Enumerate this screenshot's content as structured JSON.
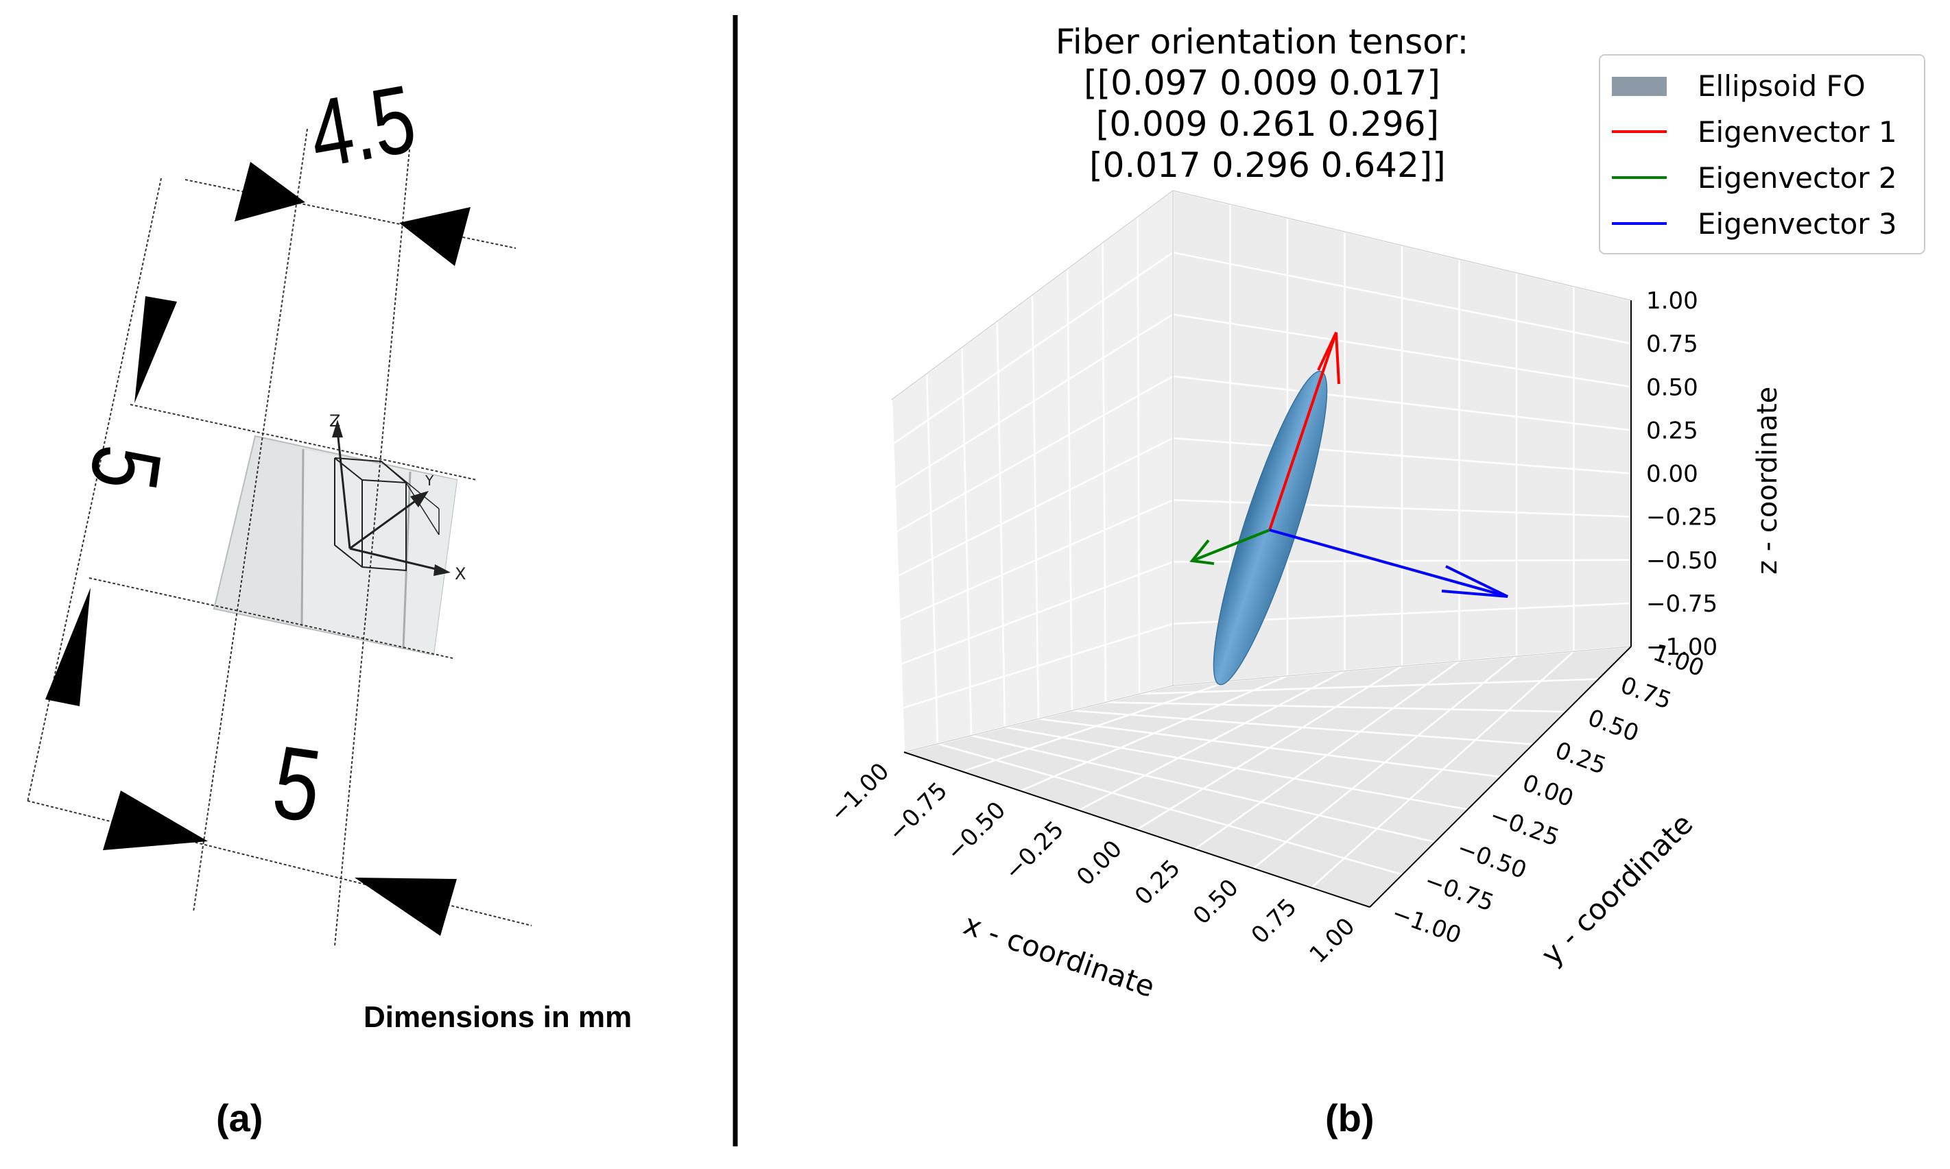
{
  "panel_a": {
    "dimensions": {
      "top_width": "4.5",
      "left_height": "5",
      "bottom_width": "5"
    },
    "note": "Dimensions in mm",
    "caption": "(a)",
    "axis_labels": {
      "x": "X",
      "y": "Y",
      "z": "Z"
    }
  },
  "panel_b": {
    "caption": "(b)",
    "title_lines": [
      "Fiber orientation tensor:",
      "[[0.097 0.009 0.017]",
      " [0.009 0.261 0.296]",
      " [0.017 0.296 0.642]]"
    ],
    "legend": [
      {
        "label": "Ellipsoid FO",
        "color": "#8c9aa8",
        "kind": "patch"
      },
      {
        "label": "Eigenvector 1",
        "color": "#ff0000",
        "kind": "line"
      },
      {
        "label": "Eigenvector 2",
        "color": "#008000",
        "kind": "line"
      },
      {
        "label": "Eigenvector 3",
        "color": "#0000ff",
        "kind": "line"
      }
    ],
    "axis_labels": {
      "x": "x - coordinate",
      "y": "y - coordinate",
      "z": "z - coordinate"
    },
    "ticks": [
      "−1.00",
      "−0.75",
      "−0.50",
      "−0.25",
      "0.00",
      "0.25",
      "0.50",
      "0.75",
      "1.00"
    ],
    "ellipsoid_color": "#4f8ab8"
  }
}
